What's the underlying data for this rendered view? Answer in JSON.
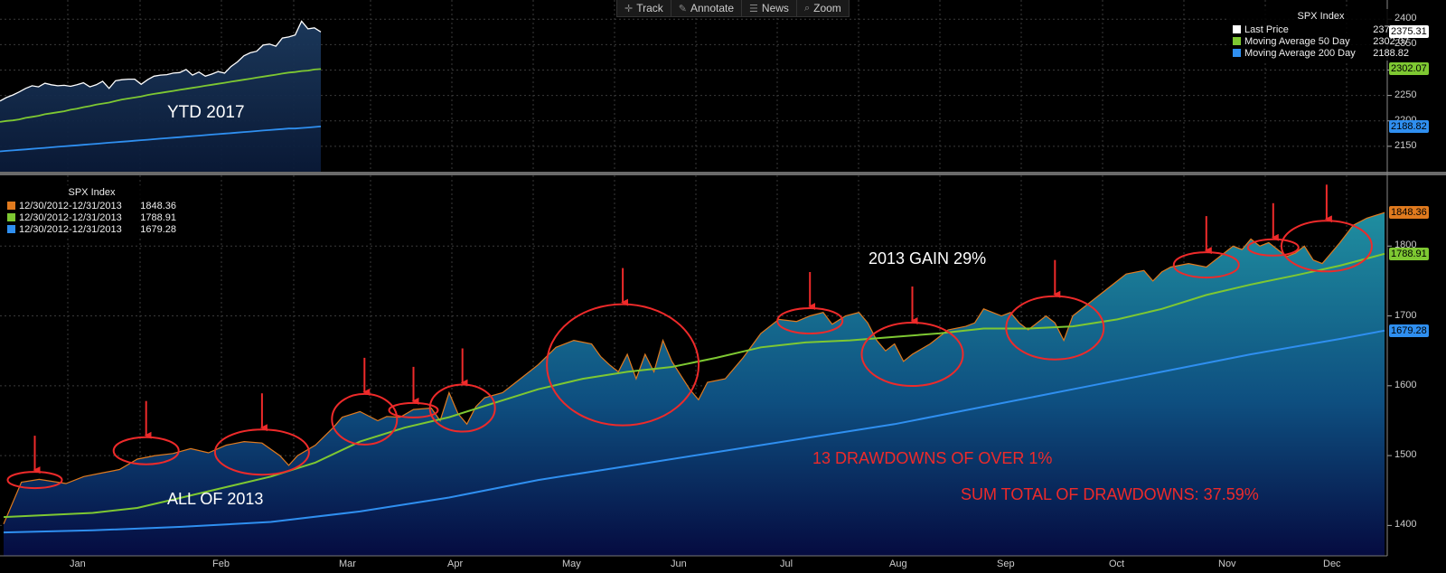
{
  "toolbar": {
    "items": [
      {
        "label": "Track",
        "icon": "crosshair-icon",
        "glyph": "✛"
      },
      {
        "label": "Annotate",
        "icon": "pencil-icon",
        "glyph": "✎"
      },
      {
        "label": "News",
        "icon": "news-icon",
        "glyph": "☰"
      },
      {
        "label": "Zoom",
        "icon": "magnifier-icon",
        "glyph": "⌕"
      }
    ]
  },
  "colors": {
    "price": "#ffffff",
    "ma50": "#7ec832",
    "ma200": "#2f8ff0",
    "price2013": "#e07a1e",
    "annotation": "#ee2a2a",
    "background": "#000000"
  },
  "chart_data": [
    {
      "type": "area",
      "legend_title": "SPX Index",
      "legend_position": "top-right",
      "grid": true,
      "ylim": [
        2100,
        2420
      ],
      "y_ticks": [
        2150,
        2200,
        2250,
        2300,
        2350,
        2400
      ],
      "series": [
        {
          "name": "Last Price",
          "last_value": "2375.31",
          "color": "#ffffff",
          "values": [
            2239,
            2246,
            2251,
            2257,
            2264,
            2269,
            2267,
            2274,
            2271,
            2269,
            2270,
            2268,
            2271,
            2275,
            2267,
            2271,
            2278,
            2264,
            2279,
            2281,
            2282,
            2282,
            2272,
            2281,
            2288,
            2290,
            2291,
            2294,
            2295,
            2301,
            2290,
            2296,
            2288,
            2292,
            2297,
            2294,
            2307,
            2316,
            2328,
            2334,
            2337,
            2349,
            2351,
            2347,
            2363,
            2365,
            2369,
            2396,
            2381,
            2383,
            2375
          ]
        },
        {
          "name": "Moving Average 50 Day",
          "last_value": "2302.07",
          "color": "#7ec832",
          "values": [
            2198,
            2200,
            2201,
            2203,
            2206,
            2208,
            2210,
            2213,
            2215,
            2217,
            2219,
            2222,
            2224,
            2227,
            2229,
            2232,
            2234,
            2236,
            2239,
            2242,
            2244,
            2246,
            2248,
            2251,
            2253,
            2255,
            2257,
            2259,
            2261,
            2263,
            2265,
            2267,
            2269,
            2271,
            2273,
            2275,
            2277,
            2279,
            2281,
            2283,
            2285,
            2287,
            2289,
            2291,
            2293,
            2295,
            2296,
            2298,
            2299,
            2301,
            2302
          ]
        },
        {
          "name": "Moving Average 200 Day",
          "last_value": "2188.82",
          "color": "#2f8ff0",
          "values": [
            2140,
            2141,
            2142,
            2143,
            2144,
            2145,
            2146,
            2147,
            2148,
            2149,
            2150,
            2151,
            2152,
            2153,
            2154,
            2155,
            2156,
            2157,
            2158,
            2159,
            2160,
            2161,
            2162,
            2163,
            2164,
            2165,
            2166,
            2167,
            2168,
            2169,
            2170,
            2171,
            2172,
            2173,
            2174,
            2175,
            2176,
            2177,
            2178,
            2179,
            2180,
            2181,
            2182,
            2183,
            2184,
            2185,
            2185,
            2186,
            2187,
            2188,
            2189
          ]
        }
      ],
      "annotations": [
        "YTD 2017"
      ]
    },
    {
      "type": "area",
      "legend_title": "SPX Index",
      "legend_position": "top-left",
      "grid": true,
      "ylim": [
        1350,
        1900
      ],
      "y_ticks": [
        1400,
        1500,
        1600,
        1700,
        1800
      ],
      "x_tick_labels": [
        "Jan",
        "Feb",
        "Mar",
        "Apr",
        "May",
        "Jun",
        "Jul",
        "Aug",
        "Sep",
        "Oct",
        "Nov",
        "Dec"
      ],
      "series": [
        {
          "name": "12/30/2012-12/31/2013",
          "last_value": "1848.36",
          "color": "#e07a1e",
          "points": [
            [
              0,
              1402
            ],
            [
              4,
              1462
            ],
            [
              8,
              1466
            ],
            [
              14,
              1460
            ],
            [
              18,
              1470
            ],
            [
              22,
              1475
            ],
            [
              26,
              1480
            ],
            [
              30,
              1495
            ],
            [
              34,
              1500
            ],
            [
              38,
              1503
            ],
            [
              42,
              1510
            ],
            [
              46,
              1504
            ],
            [
              50,
              1515
            ],
            [
              54,
              1520
            ],
            [
              58,
              1518
            ],
            [
              62,
              1500
            ],
            [
              64,
              1486
            ],
            [
              66,
              1500
            ],
            [
              70,
              1515
            ],
            [
              74,
              1540
            ],
            [
              76,
              1555
            ],
            [
              80,
              1563
            ],
            [
              84,
              1550
            ],
            [
              86,
              1556
            ],
            [
              89,
              1555
            ],
            [
              92,
              1566
            ],
            [
              96,
              1568
            ],
            [
              98,
              1550
            ],
            [
              100,
              1590
            ],
            [
              102,
              1560
            ],
            [
              104,
              1545
            ],
            [
              106,
              1570
            ],
            [
              108,
              1583
            ],
            [
              112,
              1590
            ],
            [
              116,
              1610
            ],
            [
              120,
              1630
            ],
            [
              124,
              1655
            ],
            [
              128,
              1665
            ],
            [
              132,
              1660
            ],
            [
              134,
              1642
            ],
            [
              136,
              1630
            ],
            [
              138,
              1620
            ],
            [
              140,
              1645
            ],
            [
              142,
              1610
            ],
            [
              144,
              1645
            ],
            [
              146,
              1620
            ],
            [
              148,
              1665
            ],
            [
              150,
              1635
            ],
            [
              152,
              1615
            ],
            [
              154,
              1595
            ],
            [
              156,
              1580
            ],
            [
              158,
              1605
            ],
            [
              162,
              1610
            ],
            [
              166,
              1640
            ],
            [
              170,
              1675
            ],
            [
              174,
              1695
            ],
            [
              178,
              1692
            ],
            [
              181,
              1700
            ],
            [
              184,
              1705
            ],
            [
              186,
              1688
            ],
            [
              189,
              1700
            ],
            [
              192,
              1705
            ],
            [
              194,
              1690
            ],
            [
              196,
              1665
            ],
            [
              198,
              1650
            ],
            [
              200,
              1660
            ],
            [
              202,
              1635
            ],
            [
              204,
              1645
            ],
            [
              208,
              1660
            ],
            [
              212,
              1680
            ],
            [
              216,
              1685
            ],
            [
              218,
              1690
            ],
            [
              220,
              1710
            ],
            [
              224,
              1700
            ],
            [
              226,
              1705
            ],
            [
              228,
              1690
            ],
            [
              230,
              1680
            ],
            [
              232,
              1690
            ],
            [
              234,
              1700
            ],
            [
              236,
              1690
            ],
            [
              238,
              1665
            ],
            [
              240,
              1700
            ],
            [
              244,
              1720
            ],
            [
              248,
              1740
            ],
            [
              252,
              1760
            ],
            [
              256,
              1765
            ],
            [
              258,
              1750
            ],
            [
              260,
              1763
            ],
            [
              262,
              1770
            ],
            [
              266,
              1775
            ],
            [
              270,
              1770
            ],
            [
              272,
              1780
            ],
            [
              274,
              1790
            ],
            [
              276,
              1800
            ],
            [
              278,
              1795
            ],
            [
              280,
              1810
            ],
            [
              282,
              1800
            ],
            [
              284,
              1805
            ],
            [
              286,
              1795
            ],
            [
              288,
              1785
            ],
            [
              290,
              1790
            ],
            [
              292,
              1800
            ],
            [
              294,
              1780
            ],
            [
              296,
              1775
            ],
            [
              298,
              1790
            ],
            [
              300,
              1805
            ],
            [
              303,
              1830
            ],
            [
              306,
              1840
            ],
            [
              310,
              1848
            ]
          ]
        },
        {
          "name": "12/30/2012-12/31/2013",
          "last_value": "1788.91",
          "color": "#7ec832",
          "points": [
            [
              0,
              1412
            ],
            [
              20,
              1418
            ],
            [
              30,
              1425
            ],
            [
              40,
              1440
            ],
            [
              50,
              1455
            ],
            [
              60,
              1470
            ],
            [
              70,
              1490
            ],
            [
              80,
              1520
            ],
            [
              90,
              1540
            ],
            [
              100,
              1555
            ],
            [
              110,
              1575
            ],
            [
              120,
              1595
            ],
            [
              130,
              1610
            ],
            [
              140,
              1620
            ],
            [
              150,
              1627
            ],
            [
              160,
              1640
            ],
            [
              170,
              1655
            ],
            [
              180,
              1662
            ],
            [
              190,
              1665
            ],
            [
              200,
              1670
            ],
            [
              210,
              1675
            ],
            [
              220,
              1682
            ],
            [
              230,
              1682
            ],
            [
              240,
              1685
            ],
            [
              250,
              1695
            ],
            [
              260,
              1710
            ],
            [
              270,
              1730
            ],
            [
              280,
              1745
            ],
            [
              290,
              1758
            ],
            [
              300,
              1772
            ],
            [
              310,
              1789
            ]
          ]
        },
        {
          "name": "12/30/2012-12/31/2013",
          "last_value": "1679.28",
          "color": "#2f8ff0",
          "points": [
            [
              0,
              1390
            ],
            [
              20,
              1393
            ],
            [
              40,
              1398
            ],
            [
              60,
              1405
            ],
            [
              80,
              1420
            ],
            [
              100,
              1440
            ],
            [
              120,
              1465
            ],
            [
              140,
              1485
            ],
            [
              160,
              1505
            ],
            [
              180,
              1525
            ],
            [
              200,
              1545
            ],
            [
              220,
              1570
            ],
            [
              240,
              1595
            ],
            [
              260,
              1620
            ],
            [
              280,
              1645
            ],
            [
              300,
              1667
            ],
            [
              310,
              1679
            ]
          ]
        }
      ],
      "annotations": [
        "2013 GAIN 29%",
        "ALL OF 2013",
        "13 DRAWDOWNS OF OVER 1%",
        "SUM TOTAL OF DRAWDOWNS: 37.59%"
      ],
      "drawdowns": [
        [
          7,
          1465
        ],
        [
          32,
          1507
        ],
        [
          58,
          1505
        ],
        [
          81,
          1552
        ],
        [
          92,
          1565
        ],
        [
          103,
          1568
        ],
        [
          139,
          1630
        ],
        [
          181,
          1693
        ],
        [
          204,
          1645
        ],
        [
          236,
          1683
        ],
        [
          270,
          1773
        ],
        [
          285,
          1798
        ],
        [
          297,
          1800
        ]
      ]
    }
  ]
}
